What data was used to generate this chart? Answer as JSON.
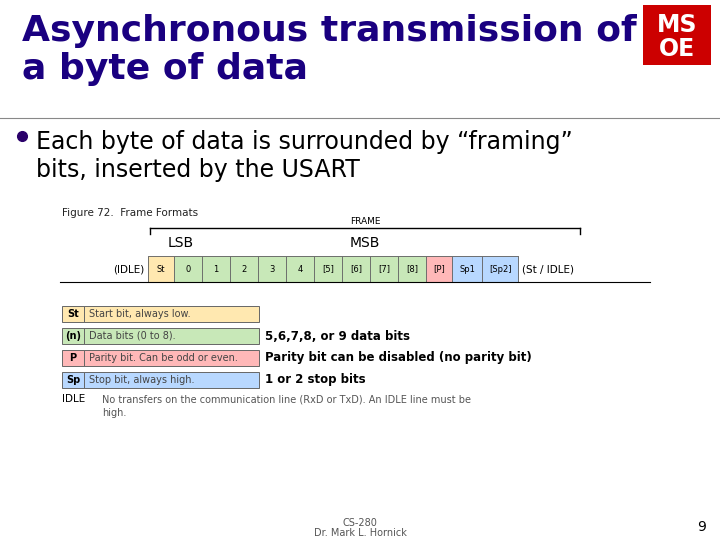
{
  "title_line1": "Asynchronous transmission of",
  "title_line2": "a byte of data",
  "title_color": "#1a0080",
  "title_fontsize": 26,
  "bullet_text_line1": "Each byte of data is surrounded by “framing”",
  "bullet_text_line2": "bits, inserted by the USART",
  "bullet_fontsize": 17,
  "bullet_color": "#000000",
  "bg_color": "#ffffff",
  "msoe_bg": "#cc0000",
  "figure_caption": "Figure 72.  Frame Formats",
  "frame_label": "FRAME",
  "lsb_label": "LSB",
  "msb_label": "MSB",
  "idle_left": "(IDLE)",
  "idle_right": "(St / IDLE)",
  "cells": [
    "St",
    "0",
    "1",
    "2",
    "3",
    "4",
    "[5]",
    "[6]",
    "[7]",
    "[8]",
    "[P]",
    "Sp1",
    "[Sp2]"
  ],
  "cell_colors": [
    "#ffe8b0",
    "#c8e8b8",
    "#c8e8b8",
    "#c8e8b8",
    "#c8e8b8",
    "#c8e8b8",
    "#c8e8b8",
    "#c8e8b8",
    "#c8e8b8",
    "#c8e8b8",
    "#ffb8b8",
    "#b8d8ff",
    "#b8d8ff"
  ],
  "cell_widths": [
    26,
    28,
    28,
    28,
    28,
    28,
    28,
    28,
    28,
    28,
    26,
    30,
    36
  ],
  "legend_rows": [
    {
      "key": "St",
      "key_color": "#ffe8b0",
      "desc": "Start bit, always low.",
      "annotation": "",
      "ann_bold": false
    },
    {
      "key": "(n)",
      "key_color": "#c8e8b8",
      "desc": "Data bits (0 to 8).",
      "annotation": "5,6,7,8, or 9 data bits",
      "ann_bold": false
    },
    {
      "key": "P",
      "key_color": "#ffb8b8",
      "desc": "Parity bit. Can be odd or even.",
      "annotation": "Parity bit can be disabled (no parity bit)",
      "ann_bold": false
    },
    {
      "key": "Sp",
      "key_color": "#b8d8ff",
      "desc": "Stop bit, always high.",
      "annotation": "1 or 2 stop bits",
      "ann_bold": false
    }
  ],
  "idle_key": "IDLE",
  "idle_desc1": "No transfers on the communication line (RxD or TxD). An IDLE line must be",
  "idle_desc2": "high.",
  "footer_top": "CS-280",
  "footer_bot": "Dr. Mark L. Hornick",
  "page_number": "9",
  "sep_line_color": "#888888",
  "cell_border_color": "#666666"
}
